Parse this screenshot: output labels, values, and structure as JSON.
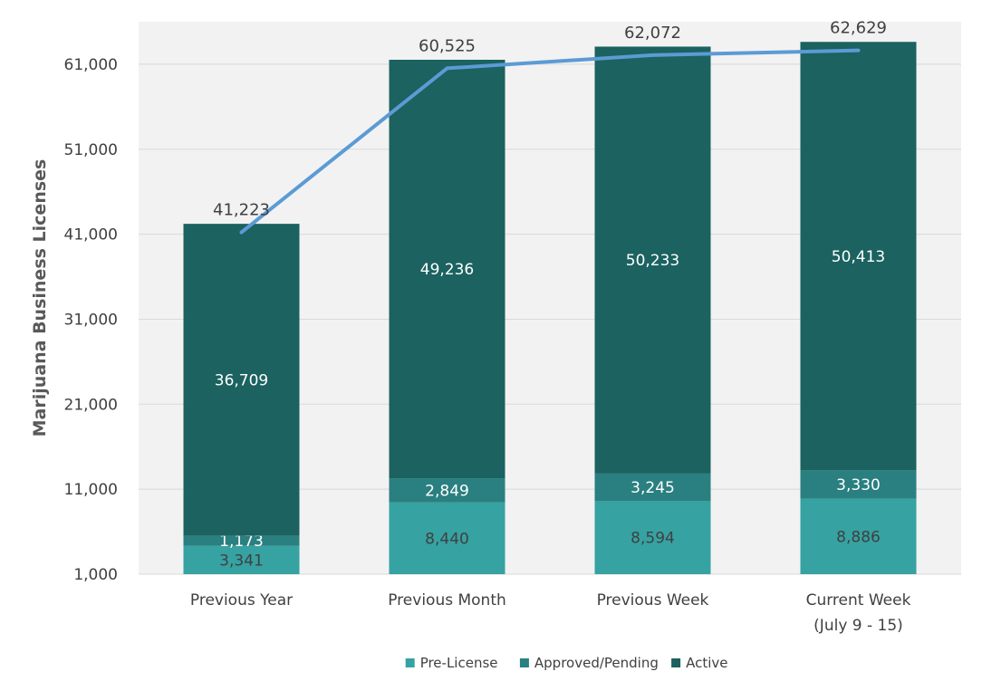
{
  "chart_data": {
    "type": "bar",
    "stacked": true,
    "ylabel": "Marijuana Business Licenses",
    "ylim": [
      1000,
      66000
    ],
    "yticks": [
      1000,
      11000,
      21000,
      31000,
      41000,
      51000,
      61000
    ],
    "ytick_labels": [
      "1,000",
      "11,000",
      "21,000",
      "31,000",
      "41,000",
      "51,000",
      "61,000"
    ],
    "grid": true,
    "legend_position": "bottom",
    "categories": [
      [
        "Previous Year"
      ],
      [
        "Previous Month"
      ],
      [
        "Previous Week"
      ],
      [
        "Current Week",
        "(July 9 - 15)"
      ]
    ],
    "series": [
      {
        "name": "Pre-License",
        "color": "#36A2A2",
        "label_color": "#404040",
        "values": [
          3341,
          8440,
          8594,
          8886
        ],
        "labels": [
          "3,341",
          "8,440",
          "8,594",
          "8,886"
        ]
      },
      {
        "name": "Approved/Pending",
        "color": "#2A7F80",
        "label_color": "#ffffff",
        "values": [
          1173,
          2849,
          3245,
          3330
        ],
        "labels": [
          "1,173",
          "2,849",
          "3,245",
          "3,330"
        ]
      },
      {
        "name": "Active",
        "color": "#1B6260",
        "label_color": "#ffffff",
        "values": [
          36709,
          49236,
          50233,
          50413
        ],
        "labels": [
          "36,709",
          "49,236",
          "50,233",
          "50,413"
        ]
      }
    ],
    "total_line": {
      "color": "#5B9BD5",
      "values": [
        41223,
        60525,
        62072,
        62629
      ],
      "labels": [
        "41,223",
        "60,525",
        "62,072",
        "62,629"
      ]
    }
  }
}
